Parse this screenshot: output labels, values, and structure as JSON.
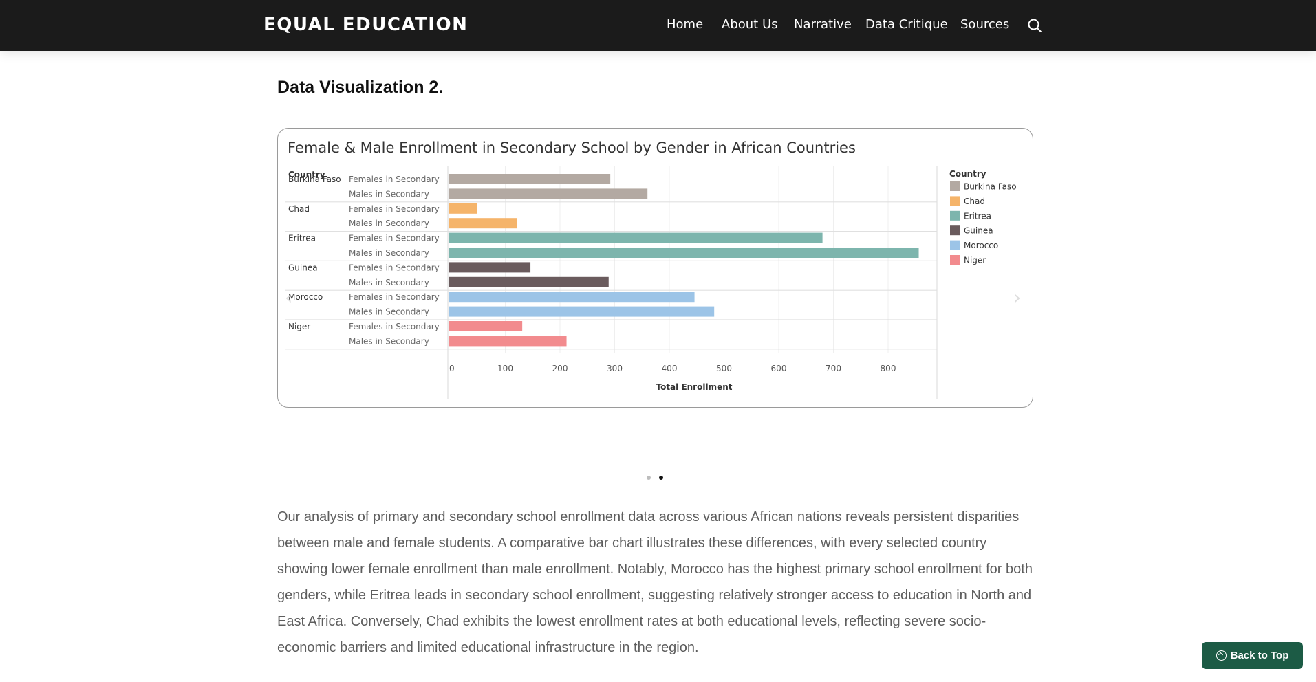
{
  "header": {
    "brand": "EQUAL EDUCATION",
    "nav": [
      {
        "label": "Home",
        "active": false
      },
      {
        "label": "About Us",
        "active": false
      },
      {
        "label": "Narrative",
        "active": true
      },
      {
        "label": "Data Critique",
        "active": false
      },
      {
        "label": "Sources",
        "active": false
      }
    ],
    "search_icon": "search-icon"
  },
  "main": {
    "section_title": "Data Visualization 2.",
    "carousel": {
      "active_slide": 2,
      "total_slides": 2,
      "prev_icon": "chevron-left-icon",
      "next_icon": "chevron-right-icon"
    },
    "paragraph": "Our analysis of primary and secondary school enrollment data across various African nations reveals persistent disparities between male and female students. A comparative bar chart illustrates these differences, with every selected country showing lower female enrollment than male enrollment. Notably, Morocco has the highest primary school enrollment for both genders, while Eritrea leads in secondary school enrollment, suggesting relatively stronger access to education in North and East Africa. Conversely, Chad exhibits the lowest enrollment rates at both educational levels, reflecting severe socio-economic barriers and limited educational infrastructure in the region."
  },
  "back_to_top": {
    "label": "Back to Top",
    "icon": "arrow-up-circle-icon"
  },
  "chart_data": {
    "type": "bar",
    "orientation": "horizontal",
    "title": "Female & Male Enrollment in Secondary School by Gender in African Countries",
    "row_header": "Country",
    "xlabel": "Total Enrollment",
    "xlim": [
      0,
      900
    ],
    "xticks": [
      0,
      100,
      200,
      300,
      400,
      500,
      600,
      700,
      800
    ],
    "grid": true,
    "legend_title": "Country",
    "legend_position": "right",
    "groups": [
      {
        "country": "Burkina Faso",
        "color": "#b3a9a2",
        "bars": [
          {
            "label": "Females in Secondary",
            "value": 292
          },
          {
            "label": "Males in Secondary",
            "value": 360
          }
        ]
      },
      {
        "country": "Chad",
        "color": "#f5b46a",
        "bars": [
          {
            "label": "Females in Secondary",
            "value": 48
          },
          {
            "label": "Males in Secondary",
            "value": 122
          }
        ]
      },
      {
        "country": "Eritrea",
        "color": "#7db5ad",
        "bars": [
          {
            "label": "Females in Secondary",
            "value": 680
          },
          {
            "label": "Males in Secondary",
            "value": 856
          }
        ]
      },
      {
        "country": "Guinea",
        "color": "#6a5b5d",
        "bars": [
          {
            "label": "Females in Secondary",
            "value": 146
          },
          {
            "label": "Males in Secondary",
            "value": 289
          }
        ]
      },
      {
        "country": "Morocco",
        "color": "#9cc4e7",
        "bars": [
          {
            "label": "Females in Secondary",
            "value": 446
          },
          {
            "label": "Males in Secondary",
            "value": 482
          }
        ]
      },
      {
        "country": "Niger",
        "color": "#f28b8e",
        "bars": [
          {
            "label": "Females in Secondary",
            "value": 131
          },
          {
            "label": "Males in Secondary",
            "value": 212
          }
        ]
      }
    ]
  }
}
